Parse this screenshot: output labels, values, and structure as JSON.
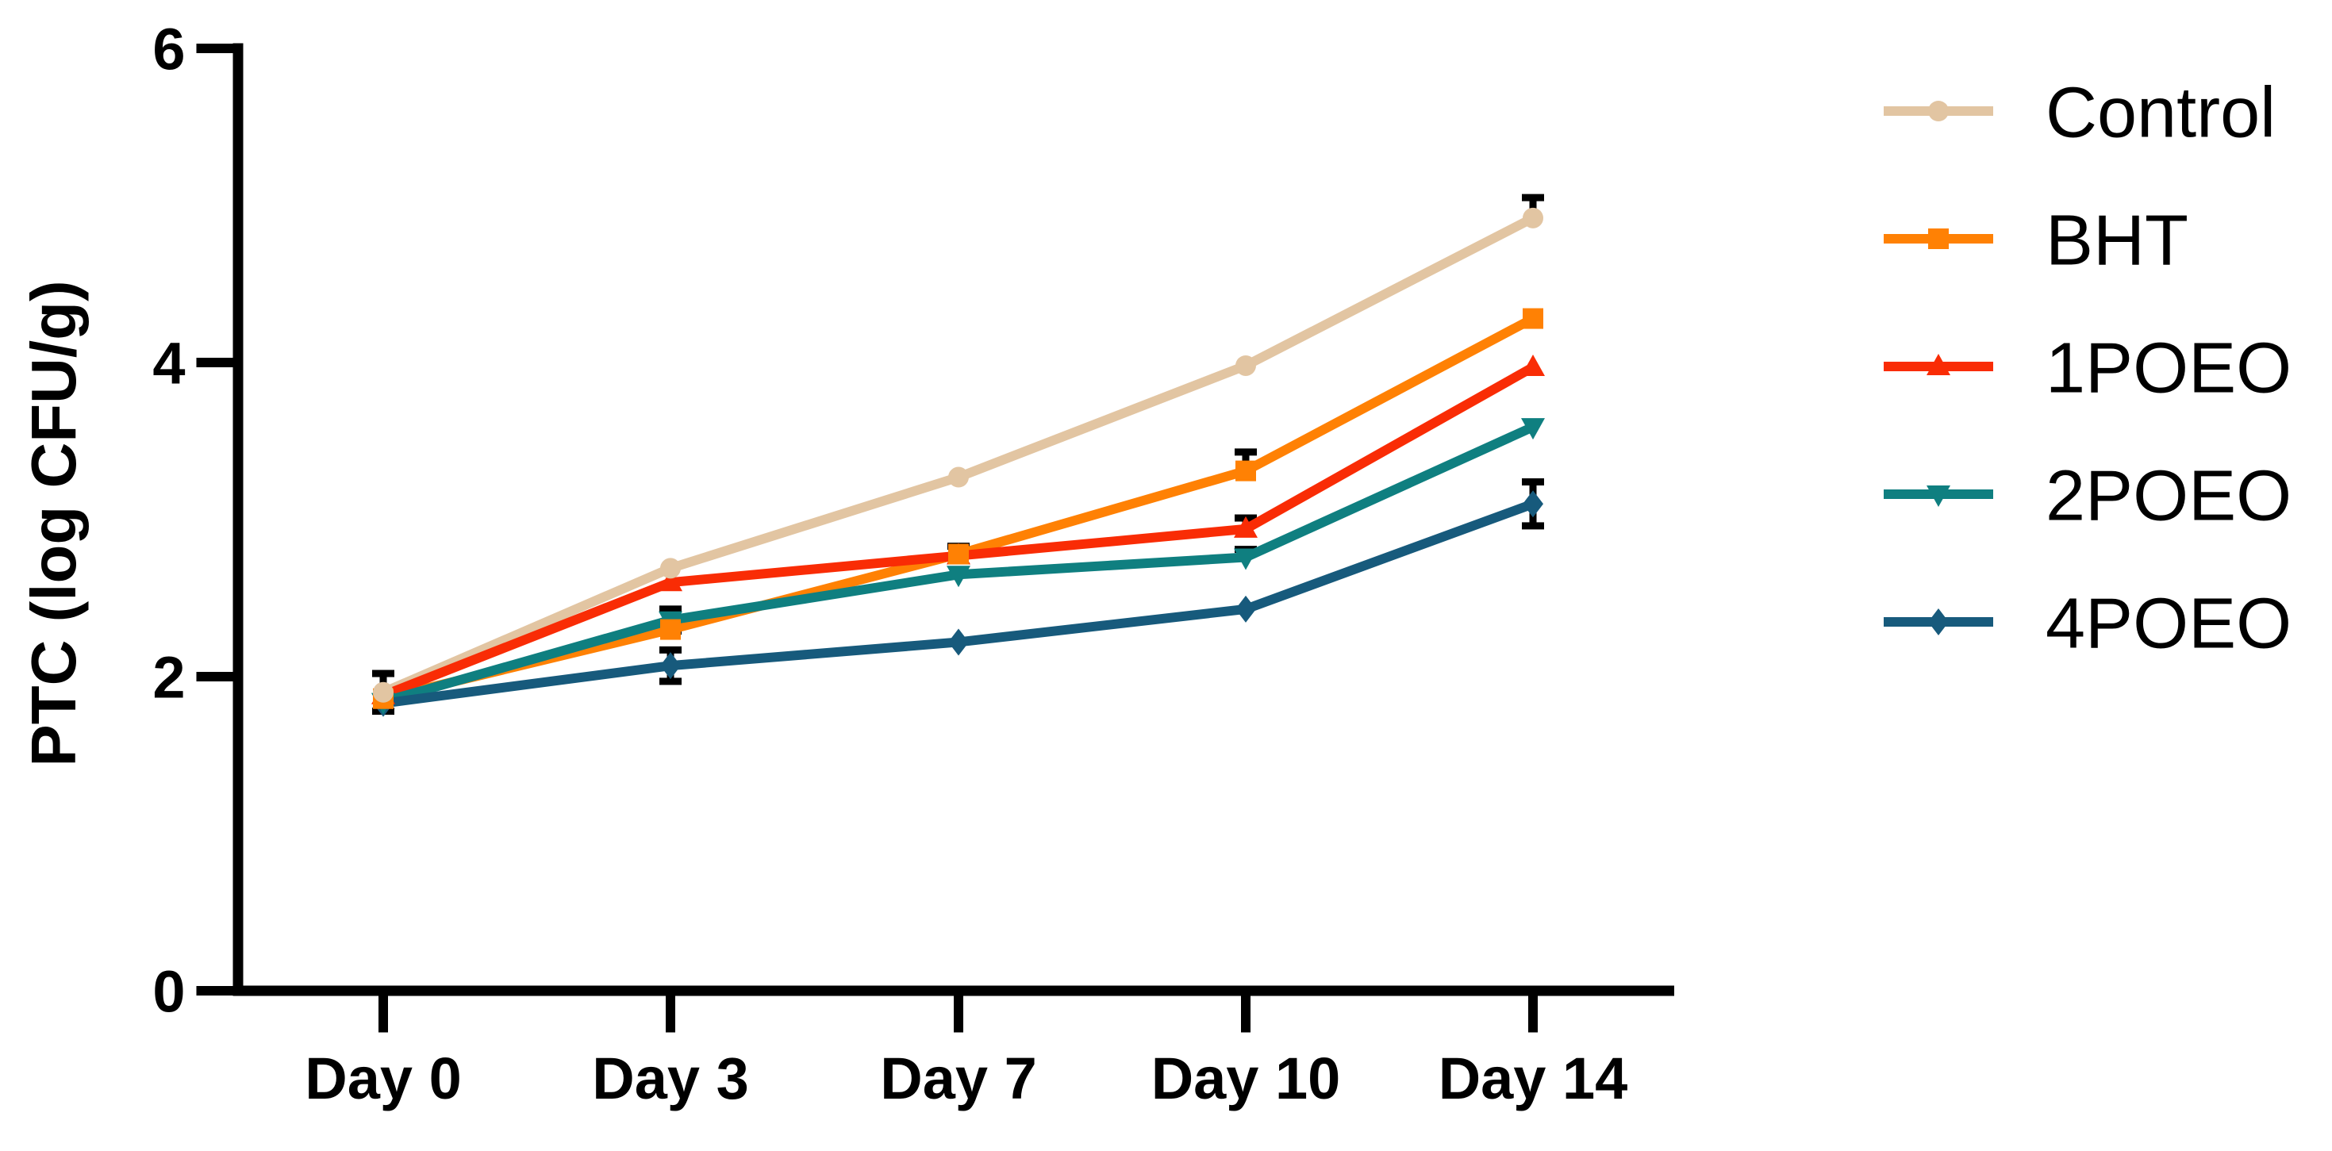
{
  "chart_data": {
    "type": "line",
    "title": "",
    "xlabel": "",
    "ylabel": "PTC (log CFU/g)",
    "categories": [
      "Day 0",
      "Day 3",
      "Day 7",
      "Day 10",
      "Day 14"
    ],
    "y_ticks": [
      0,
      2,
      4,
      6
    ],
    "ylim": [
      0,
      6
    ],
    "grid": false,
    "legend_position": "right",
    "background_color": "#FFFFFF",
    "axis_color": "#000000",
    "error_bar_color": "#000000",
    "series": [
      {
        "name": "Control",
        "color": "#E2C5A2",
        "marker": "circle",
        "values": [
          1.9,
          2.69,
          3.27,
          3.98,
          4.92
        ],
        "err_up": [
          0.12,
          0,
          0,
          0,
          0.13
        ],
        "err_down": [
          0.12,
          0,
          0,
          0,
          0
        ]
      },
      {
        "name": "BHT",
        "color": "#FF8104",
        "marker": "square",
        "values": [
          1.86,
          2.3,
          2.78,
          3.31,
          4.28
        ],
        "err_up": [
          0,
          0,
          0.05,
          0.12,
          0
        ],
        "err_down": [
          0,
          0,
          0,
          0,
          0
        ]
      },
      {
        "name": "1POEO",
        "color": "#F92C05",
        "marker": "triangle-up",
        "values": [
          1.88,
          2.6,
          2.77,
          2.94,
          3.97
        ],
        "err_up": [
          0,
          0,
          0,
          0.07,
          0
        ],
        "err_down": [
          0,
          0,
          0,
          0,
          0
        ]
      },
      {
        "name": "2POEO",
        "color": "#0F7F80",
        "marker": "triangle-down",
        "values": [
          1.84,
          2.36,
          2.65,
          2.76,
          3.59
        ],
        "err_up": [
          0,
          0.07,
          0,
          0.05,
          0
        ],
        "err_down": [
          0,
          0.07,
          0,
          0,
          0
        ]
      },
      {
        "name": "4POEO",
        "color": "#175A7C",
        "marker": "diamond",
        "values": [
          1.83,
          2.07,
          2.22,
          2.43,
          3.1
        ],
        "err_up": [
          0,
          0.1,
          0,
          0,
          0.14
        ],
        "err_down": [
          0,
          0.1,
          0,
          0,
          0.14
        ]
      }
    ]
  }
}
